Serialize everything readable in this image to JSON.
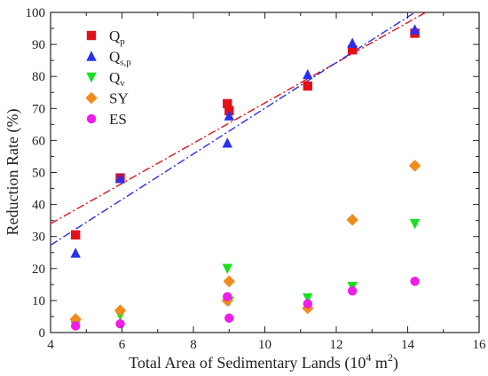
{
  "chart_data": {
    "type": "scatter",
    "xlabel": "Total Area of Sedimentary Lands (10",
    "xlabel_sup": "4",
    "xlabel_unit": " m",
    "xlabel_sup2": "2",
    "xlabel_end": ")",
    "ylabel": "Reduction Rate (%)",
    "xlim": [
      4,
      16
    ],
    "ylim": [
      0,
      100
    ],
    "xticks": [
      "4",
      "6",
      "8",
      "10",
      "12",
      "14",
      "16"
    ],
    "yticks": [
      "0",
      "10",
      "20",
      "30",
      "40",
      "50",
      "60",
      "70",
      "80",
      "90",
      "100"
    ],
    "legend_position": "top-left",
    "series": [
      {
        "name": "Q",
        "sub": "p",
        "color": "#e3101a",
        "marker": "square",
        "points": [
          [
            4.7,
            30.5
          ],
          [
            5.95,
            48.3
          ],
          [
            8.95,
            71.5
          ],
          [
            9.0,
            69.3
          ],
          [
            11.2,
            77.0
          ],
          [
            12.45,
            88.3
          ],
          [
            14.2,
            93.5
          ]
        ]
      },
      {
        "name": "Q",
        "sub": "s,p",
        "color": "#2a2ff0",
        "marker": "triangle-up",
        "points": [
          [
            4.7,
            24.8
          ],
          [
            5.95,
            48.1
          ],
          [
            8.95,
            59.2
          ],
          [
            9.0,
            67.7
          ],
          [
            11.2,
            80.6
          ],
          [
            12.45,
            90.4
          ],
          [
            14.2,
            94.6
          ]
        ]
      },
      {
        "name": "Q",
        "sub": "v",
        "color": "#18e01e",
        "marker": "triangle-down",
        "points": [
          [
            4.7,
            2.2
          ],
          [
            5.95,
            5.4
          ],
          [
            8.95,
            20.0
          ],
          [
            9.0,
            9.8
          ],
          [
            11.2,
            10.8
          ],
          [
            12.45,
            14.4
          ],
          [
            14.2,
            34.0
          ]
        ]
      },
      {
        "name": "SY",
        "sub": "",
        "color": "#f08c1c",
        "marker": "diamond",
        "points": [
          [
            4.7,
            4.2
          ],
          [
            5.95,
            6.9
          ],
          [
            8.95,
            10.0
          ],
          [
            9.0,
            16.0
          ],
          [
            11.2,
            7.6
          ],
          [
            12.45,
            35.2
          ],
          [
            14.2,
            52.1
          ]
        ]
      },
      {
        "name": "ES",
        "sub": "",
        "color": "#f01ce8",
        "marker": "circle",
        "points": [
          [
            4.7,
            2.1
          ],
          [
            5.95,
            2.7
          ],
          [
            8.95,
            11.2
          ],
          [
            9.0,
            4.5
          ],
          [
            11.2,
            9.0
          ],
          [
            12.45,
            13.0
          ],
          [
            14.2,
            16.0
          ]
        ]
      }
    ],
    "trendlines": [
      {
        "series": "Qp",
        "color": "#e3101a",
        "style": "dash-dot",
        "x": [
          4,
          14.5
        ],
        "y": [
          34.0,
          100.0
        ]
      },
      {
        "series": "Qs,p",
        "color": "#2a2ff0",
        "style": "dash-dot",
        "x": [
          4,
          14.2
        ],
        "y": [
          27.3,
          100.0
        ]
      }
    ]
  }
}
